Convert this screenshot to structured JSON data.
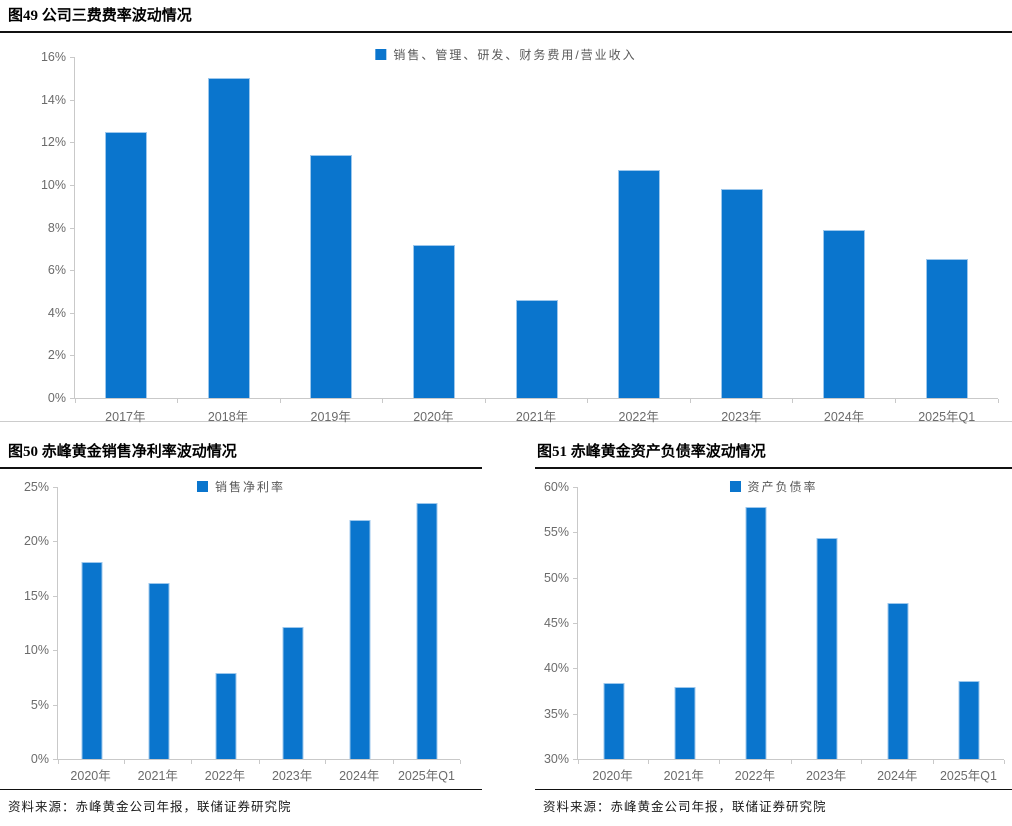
{
  "colors": {
    "bar_fill": "#0a75cd",
    "bar_border": "#9cc7ec",
    "axis_line": "#c9c9c9",
    "tick_text": "#6b6b6b",
    "legend_text": "#595959",
    "title_text": "#000000",
    "rule_dark": "#111111",
    "rule_light": "#cccccc",
    "source_text": "#1a1a1a",
    "background": "#ffffff"
  },
  "chart_data": [
    {
      "type": "bar",
      "title": "图49 公司三费费率波动情况",
      "legend_label": "销售、管理、研发、财务费用/营业收入",
      "categories": [
        "2017年",
        "2018年",
        "2019年",
        "2020年",
        "2021年",
        "2022年",
        "2023年",
        "2024年",
        "2025年Q1"
      ],
      "values": [
        12.5,
        15.0,
        11.4,
        7.2,
        4.6,
        10.7,
        9.8,
        7.9,
        6.5
      ],
      "ylim": [
        0,
        16
      ],
      "ytick_step": 2,
      "y_unit": "%",
      "grid": false,
      "legend_position": "top-center"
    },
    {
      "type": "bar",
      "title": "图50 赤峰黄金销售净利率波动情况",
      "legend_label": "销售净利率",
      "categories": [
        "2020年",
        "2021年",
        "2022年",
        "2023年",
        "2024年",
        "2025年Q1"
      ],
      "values": [
        18.1,
        16.2,
        7.9,
        12.1,
        22.0,
        23.5
      ],
      "ylim": [
        0,
        25
      ],
      "ytick_step": 5,
      "y_unit": "%",
      "grid": false,
      "legend_position": "top-center",
      "source": "资料来源：赤峰黄金公司年报，联储证券研究院"
    },
    {
      "type": "bar",
      "title": "图51 赤峰黄金资产负债率波动情况",
      "legend_label": "资产负债率",
      "categories": [
        "2020年",
        "2021年",
        "2022年",
        "2023年",
        "2024年",
        "2025年Q1"
      ],
      "values": [
        38.4,
        37.9,
        57.8,
        54.4,
        47.2,
        38.6
      ],
      "ylim": [
        30,
        60
      ],
      "ytick_step": 5,
      "y_unit": "%",
      "grid": false,
      "legend_position": "top-center",
      "source": "资料来源：赤峰黄金公司年报，联储证券研究院"
    }
  ]
}
